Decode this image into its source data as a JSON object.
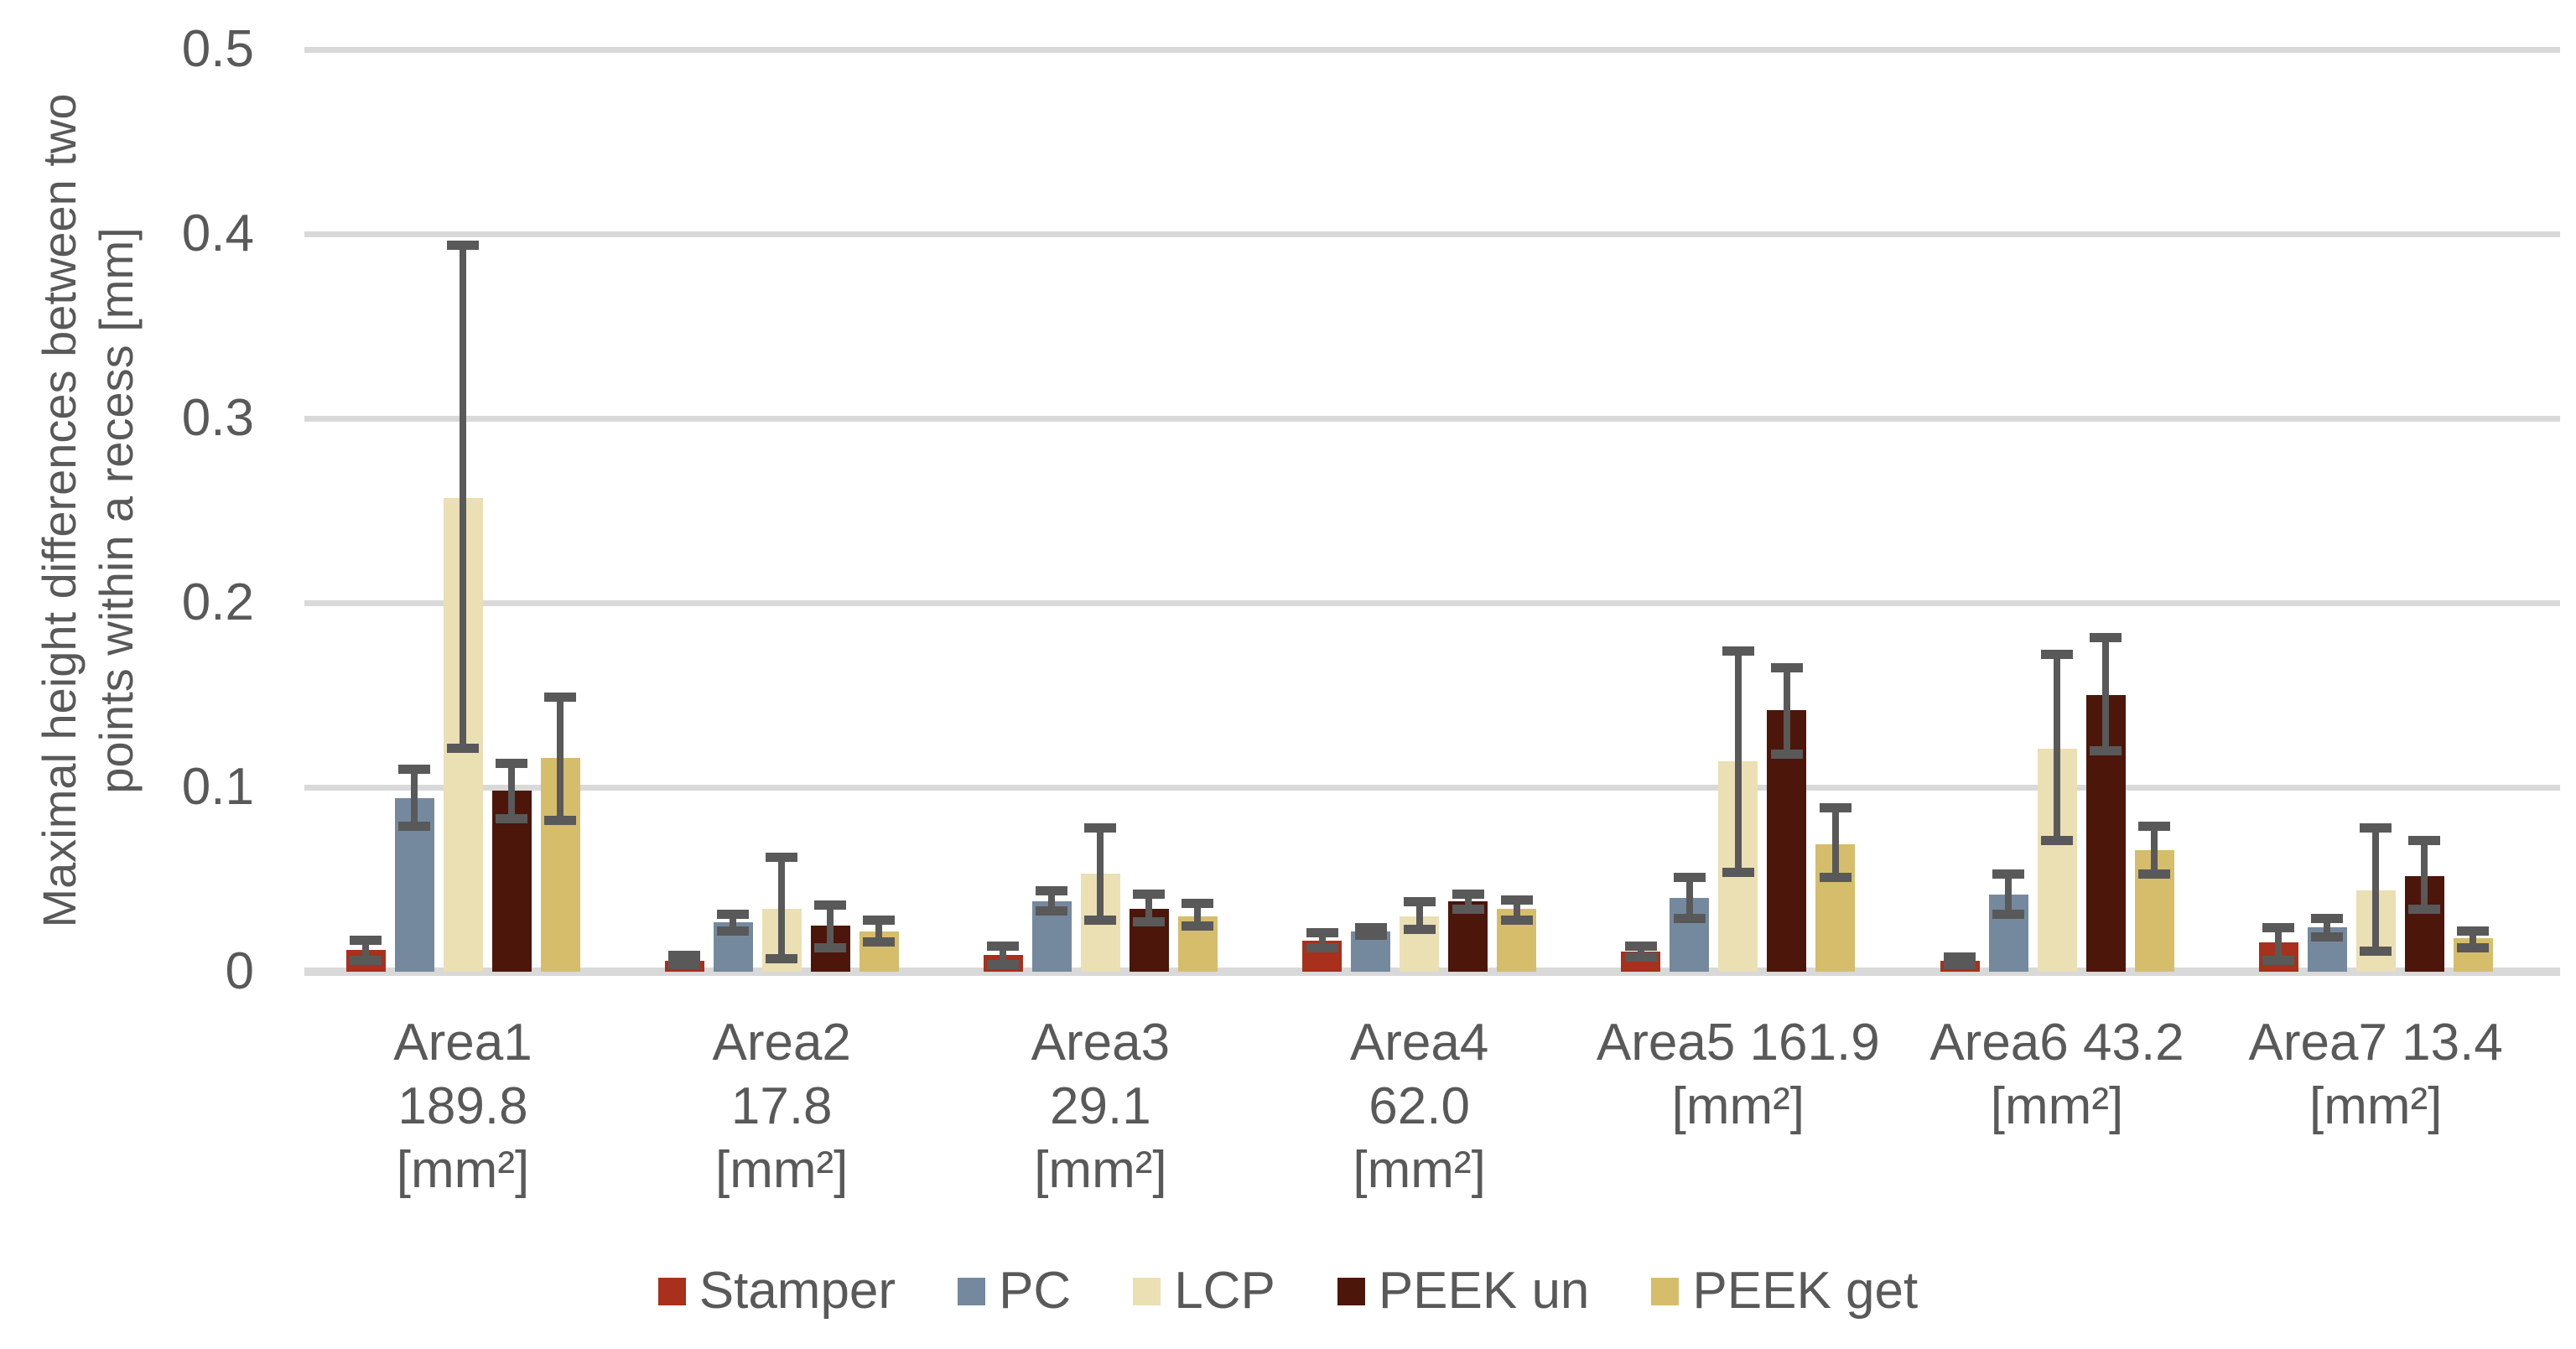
{
  "chart_data": {
    "type": "bar",
    "title": "",
    "ylabel_lines": [
      "Maximal height differences between two",
      "points  within a recess [mm]"
    ],
    "ylim": [
      0,
      0.5
    ],
    "grid": true,
    "legend_position": "bottom",
    "yticks": [
      {
        "value": 0.0,
        "label": "0"
      },
      {
        "value": 0.1,
        "label": "0.1"
      },
      {
        "value": 0.2,
        "label": "0.2"
      },
      {
        "value": 0.3,
        "label": "0.3"
      },
      {
        "value": 0.4,
        "label": "0.4"
      },
      {
        "value": 0.5,
        "label": "0.5"
      }
    ],
    "categories": [
      {
        "label_lines": [
          "Area1",
          "189.8",
          "[mm²]"
        ]
      },
      {
        "label_lines": [
          "Area2",
          "17.8",
          "[mm²]"
        ]
      },
      {
        "label_lines": [
          "Area3",
          "29.1",
          "[mm²]"
        ]
      },
      {
        "label_lines": [
          "Area4",
          "62.0",
          "[mm²]"
        ]
      },
      {
        "label_lines": [
          "Area5 161.9",
          "[mm²]"
        ]
      },
      {
        "label_lines": [
          "Area6 43.2",
          "[mm²]"
        ]
      },
      {
        "label_lines": [
          "Area7 13.4",
          "[mm²]"
        ]
      }
    ],
    "series": [
      {
        "name": "Stamper",
        "color": "#A8301C",
        "values": [
          0.012,
          0.006,
          0.009,
          0.017,
          0.011,
          0.006,
          0.016
        ],
        "err_hi": [
          0.017,
          0.009,
          0.014,
          0.021,
          0.014,
          0.008,
          0.024
        ],
        "err_lo": [
          0.006,
          0.004,
          0.004,
          0.013,
          0.008,
          0.004,
          0.006
        ]
      },
      {
        "name": "PC",
        "color": "#75899E",
        "values": [
          0.094,
          0.027,
          0.038,
          0.022,
          0.04,
          0.042,
          0.024
        ],
        "err_hi": [
          0.11,
          0.031,
          0.044,
          0.024,
          0.051,
          0.053,
          0.029
        ],
        "err_lo": [
          0.079,
          0.022,
          0.033,
          0.02,
          0.029,
          0.031,
          0.019
        ]
      },
      {
        "name": "LCP",
        "color": "#EBDFB4",
        "values": [
          0.257,
          0.034,
          0.053,
          0.03,
          0.114,
          0.121,
          0.044
        ],
        "err_hi": [
          0.394,
          0.062,
          0.078,
          0.038,
          0.174,
          0.172,
          0.078
        ],
        "err_lo": [
          0.121,
          0.007,
          0.028,
          0.023,
          0.054,
          0.071,
          0.011
        ]
      },
      {
        "name": "PEEK un",
        "color": "#4C160B",
        "values": [
          0.098,
          0.025,
          0.034,
          0.038,
          0.142,
          0.15,
          0.052
        ],
        "err_hi": [
          0.113,
          0.036,
          0.042,
          0.042,
          0.165,
          0.181,
          0.071
        ],
        "err_lo": [
          0.083,
          0.013,
          0.027,
          0.034,
          0.118,
          0.12,
          0.034
        ]
      },
      {
        "name": "PEEK get",
        "color": "#D6BD6B",
        "values": [
          0.116,
          0.022,
          0.03,
          0.034,
          0.069,
          0.066,
          0.018
        ],
        "err_hi": [
          0.149,
          0.028,
          0.037,
          0.039,
          0.089,
          0.079,
          0.022
        ],
        "err_lo": [
          0.082,
          0.016,
          0.025,
          0.028,
          0.051,
          0.053,
          0.013
        ]
      }
    ],
    "colors": {
      "gridline": "#D9D9D9",
      "error_bar": "#595959",
      "text": "#595959",
      "background": "#FFFFFF"
    }
  }
}
